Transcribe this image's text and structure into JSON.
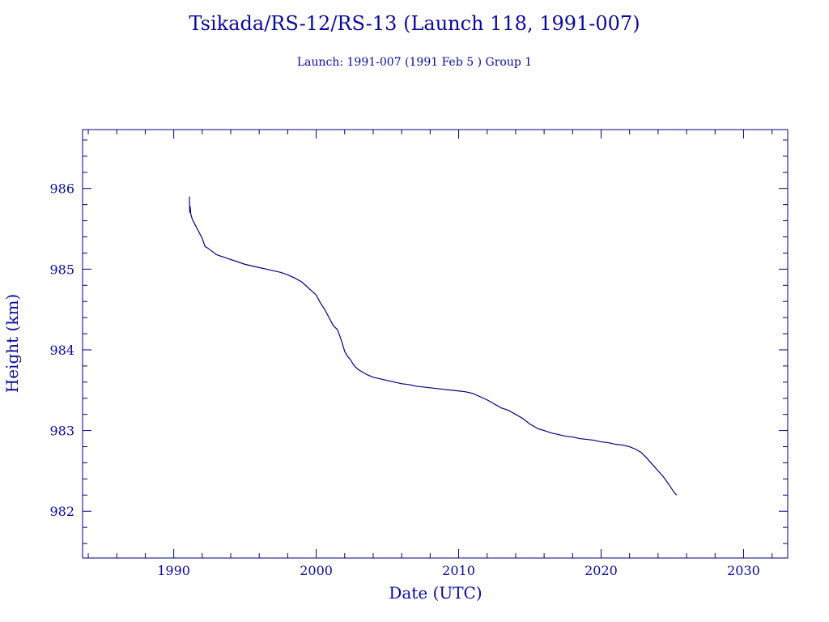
{
  "chart_data": {
    "type": "line",
    "title": "Tsikada/RS-12/RS-13 (Launch 118, 1991-007)",
    "subtitle": "Launch: 1991-007  (1991 Feb  5 )  Group 1",
    "xlabel": "Date (UTC)",
    "ylabel": "Height (km)",
    "xlim": [
      1983.6,
      2033.1
    ],
    "ylim": [
      981.42,
      986.73
    ],
    "x_ticks": [
      1990,
      2000,
      2010,
      2020,
      2030
    ],
    "y_ticks": [
      982,
      983,
      984,
      985,
      986
    ],
    "grid": false,
    "color": "#00007f",
    "series": [
      {
        "x": [
          1991.1,
          1991.12,
          1991.15,
          1991.2,
          1991.3,
          1991.5,
          1991.8,
          1992.0,
          1992.2,
          1992.4,
          1992.7,
          1993.0,
          1993.5,
          1994.0,
          1994.5,
          1995.0,
          1995.5,
          1996.0,
          1996.5,
          1997.0,
          1997.5,
          1998.0,
          1998.5,
          1999.0,
          1999.5,
          2000.0,
          2000.3,
          2000.6,
          2000.9,
          2001.2,
          2001.5,
          2001.8,
          2002.0,
          2002.2,
          2002.4,
          2002.6,
          2002.8,
          2003.0,
          2003.3,
          2003.6,
          2004.0,
          2004.5,
          2005.0,
          2005.5,
          2006.0,
          2006.5,
          2007.0,
          2007.5,
          2008.0,
          2008.5,
          2009.0,
          2009.5,
          2010.0,
          2010.5,
          2011.0,
          2011.5,
          2012.0,
          2012.5,
          2013.0,
          2013.5,
          2014.0,
          2014.5,
          2015.0,
          2015.3,
          2015.6,
          2016.0,
          2016.5,
          2017.0,
          2017.5,
          2018.0,
          2018.5,
          2019.0,
          2019.5,
          2020.0,
          2020.5,
          2021.0,
          2021.5,
          2022.0,
          2022.4,
          2022.8,
          2023.2,
          2023.6,
          2024.0,
          2024.4,
          2024.8,
          2025.1,
          2025.3
        ],
        "y": [
          985.9,
          985.7,
          985.78,
          985.68,
          985.62,
          985.55,
          985.45,
          985.38,
          985.28,
          985.26,
          985.22,
          985.18,
          985.15,
          985.12,
          985.09,
          985.06,
          985.04,
          985.02,
          985.0,
          984.98,
          984.96,
          984.93,
          984.89,
          984.84,
          984.76,
          984.68,
          984.58,
          984.5,
          984.4,
          984.3,
          984.25,
          984.1,
          983.98,
          983.92,
          983.88,
          983.82,
          983.78,
          983.75,
          983.72,
          983.69,
          983.66,
          983.64,
          983.62,
          983.6,
          983.58,
          983.57,
          983.55,
          983.54,
          983.53,
          983.52,
          983.51,
          983.5,
          983.49,
          983.48,
          983.46,
          983.42,
          983.38,
          983.33,
          983.28,
          983.25,
          983.2,
          983.15,
          983.08,
          983.05,
          983.02,
          983.0,
          982.97,
          982.95,
          982.93,
          982.92,
          982.9,
          982.89,
          982.88,
          982.86,
          982.85,
          982.83,
          982.82,
          982.8,
          982.77,
          982.73,
          982.66,
          982.58,
          982.5,
          982.42,
          982.32,
          982.24,
          982.2
        ]
      }
    ]
  }
}
